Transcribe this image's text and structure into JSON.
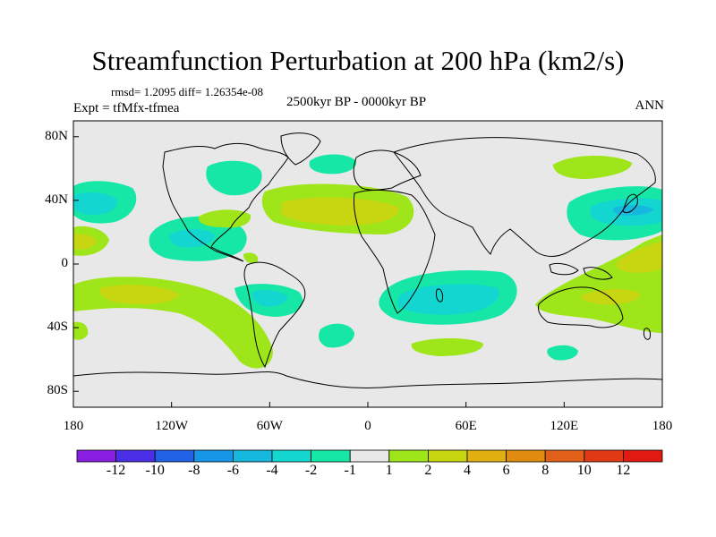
{
  "title": "Streamfunction Perturbation at 200 hPa (km2/s)",
  "stats": "rmsd= 1.2095 diff= 1.26354e-08",
  "experiment": "Expt = tfMfx-tfmea",
  "period": "2500kyr BP - 0000kyr BP",
  "season": "ANN",
  "y_axis": {
    "ticks": [
      "80N",
      "40N",
      "0",
      "40S",
      "80S"
    ],
    "values": [
      80,
      40,
      0,
      -40,
      -80
    ]
  },
  "x_axis": {
    "ticks": [
      "180",
      "120W",
      "60W",
      "0",
      "60E",
      "120E",
      "180"
    ],
    "values": [
      -180,
      -120,
      -60,
      0,
      60,
      120,
      180
    ]
  },
  "colorbar": {
    "labels": [
      "-12",
      "-10",
      "-8",
      "-6",
      "-4",
      "-2",
      "-1",
      "1",
      "2",
      "4",
      "6",
      "8",
      "10",
      "12"
    ],
    "colors": [
      "#8a1ee0",
      "#4a2ee6",
      "#1f62e6",
      "#1596e6",
      "#16b8e0",
      "#14d6d0",
      "#16e6a6",
      "#e8e8e8",
      "#9ee61a",
      "#c8d612",
      "#e0b010",
      "#e08a10",
      "#e0601a",
      "#e03a14",
      "#e01a10"
    ]
  },
  "colors": {
    "neutral": "#e8e8e8",
    "green1": "#9ee61a",
    "green2": "#c8d612",
    "teal1": "#16e6a6",
    "teal2": "#14d6d0",
    "cyan": "#16b8e0"
  }
}
